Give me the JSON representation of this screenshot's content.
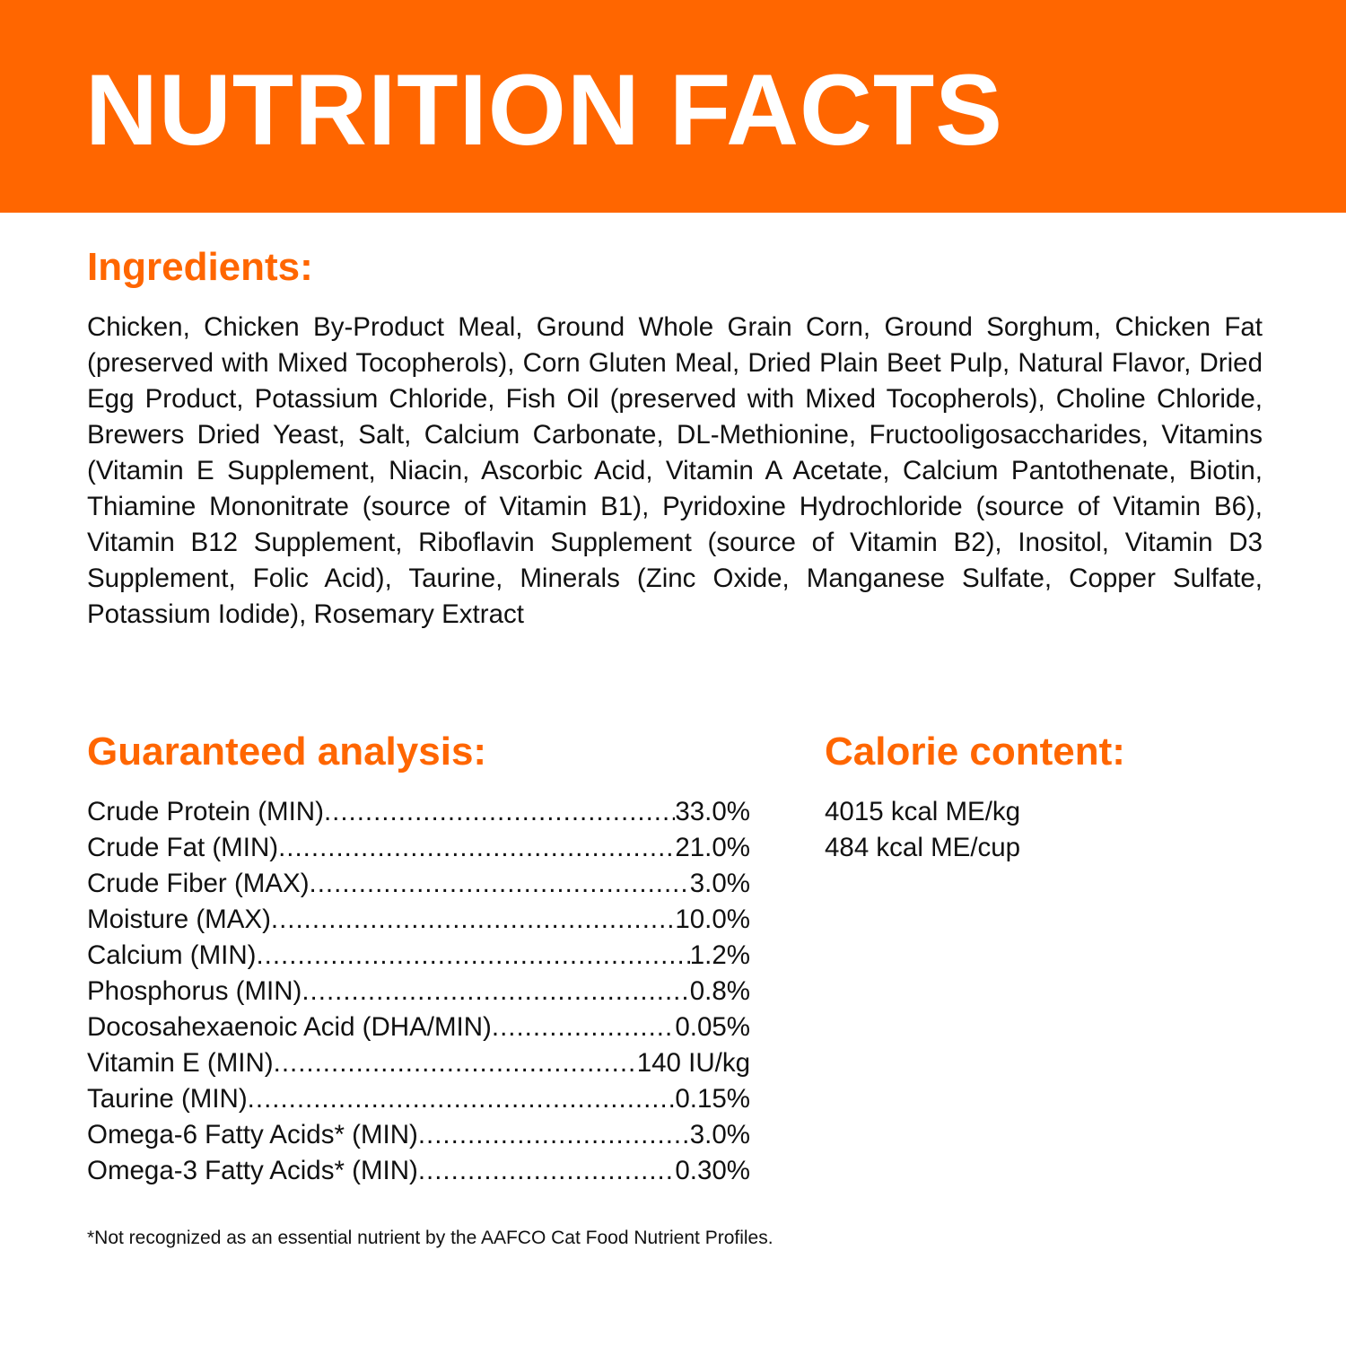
{
  "header": {
    "title": "NUTRITION FACTS",
    "background_color": "#ff6600"
  },
  "ingredients": {
    "heading": "Ingredients:",
    "text": "Chicken, Chicken By-Product Meal, Ground Whole Grain Corn, Ground Sorghum, Chicken Fat (preserved with Mixed Tocopherols), Corn Gluten Meal, Dried Plain Beet Pulp, Natural Flavor, Dried Egg Product, Potassium Chloride, Fish Oil (preserved with Mixed Tocopherols), Choline Chloride, Brewers Dried Yeast, Salt, Calcium Carbonate, DL-Methionine, Fructooligosaccharides, Vitamins (Vitamin E Supplement, Niacin, Ascorbic Acid, Vitamin A Acetate, Calcium Pantothenate, Biotin, Thiamine Mononitrate (source of Vitamin B1), Pyridoxine Hydrochloride (source of Vitamin B6), Vitamin B12 Supplement, Riboflavin Supplement (source of Vitamin B2), Inositol, Vitamin D3 Supplement, Folic Acid), Taurine, Minerals (Zinc Oxide, Manganese Sulfate, Copper Sulfate, Potassium Iodide), Rosemary Extract"
  },
  "guaranteed_analysis": {
    "heading": "Guaranteed analysis:",
    "rows": [
      {
        "label": "Crude Protein (MIN)",
        "value": "33.0%"
      },
      {
        "label": "Crude Fat (MIN)",
        "value": "21.0%"
      },
      {
        "label": "Crude Fiber (MAX)",
        "value": "3.0%"
      },
      {
        "label": "Moisture (MAX)",
        "value": "10.0%"
      },
      {
        "label": "Calcium (MIN)",
        "value": "1.2%"
      },
      {
        "label": "Phosphorus (MIN)",
        "value": "0.8%"
      },
      {
        "label": "Docosahexaenoic Acid (DHA/MIN)",
        "value": "0.05%"
      },
      {
        "label": "Vitamin E (MIN)",
        "value": "140 IU/kg"
      },
      {
        "label": "Taurine (MIN)",
        "value": "0.15%"
      },
      {
        "label": "Omega-6 Fatty Acids* (MIN)",
        "value": "3.0%"
      },
      {
        "label": "Omega-3 Fatty Acids* (MIN)",
        "value": "0.30%"
      }
    ]
  },
  "calorie_content": {
    "heading": "Calorie content:",
    "lines": [
      "4015 kcal ME/kg",
      "484 kcal ME/cup"
    ]
  },
  "footnote": "*Not recognized as an essential nutrient by the AAFCO Cat Food Nutrient Profiles."
}
